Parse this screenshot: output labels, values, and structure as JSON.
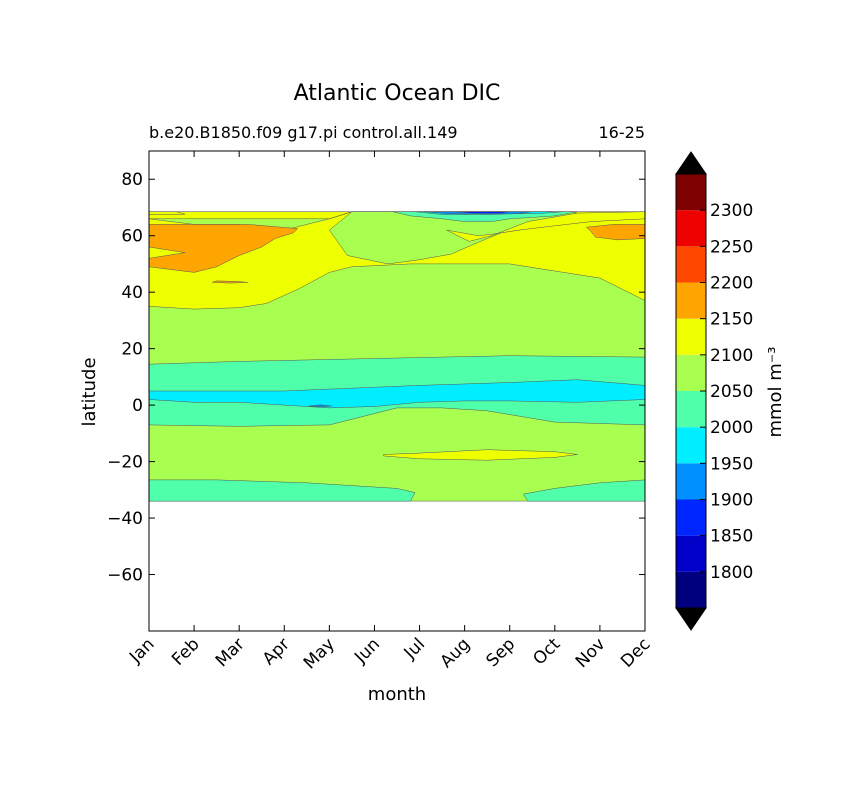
{
  "chart_data": {
    "type": "contourf",
    "title": "Atlantic Ocean DIC",
    "subtitle_left": "b.e20.B1850.f09 g17.pi control.all.149",
    "subtitle_right": "16-25",
    "xlabel": "month",
    "ylabel": "latitude",
    "x_ticks": [
      "Jan",
      "Feb",
      "Mar",
      "Apr",
      "May",
      "Jun",
      "Jul",
      "Aug",
      "Sep",
      "Oct",
      "Nov",
      "Dec"
    ],
    "xlim": [
      1,
      12
    ],
    "ylim": [
      -80,
      90
    ],
    "y_ticks": [
      80,
      60,
      40,
      20,
      0,
      -20,
      -40,
      -60
    ],
    "y_tick_labels": [
      "80",
      "60",
      "40",
      "20",
      "0",
      "−20",
      "−40",
      "−60"
    ],
    "colorbar": {
      "label": "mmol m⁻³",
      "levels": [
        1750,
        1800,
        1850,
        1900,
        1950,
        2000,
        2050,
        2100,
        2150,
        2200,
        2250,
        2300,
        2350
      ],
      "tick_values": [
        1800,
        1850,
        1900,
        1950,
        2000,
        2050,
        2100,
        2150,
        2200,
        2250,
        2300
      ],
      "extend": "both",
      "colors": [
        "#00007f",
        "#0000c8",
        "#0026ff",
        "#0090ff",
        "#00eeff",
        "#4fffa9",
        "#a9ff4f",
        "#eeff00",
        "#ffa500",
        "#ff4800",
        "#ee0000",
        "#7f0000"
      ],
      "extend_color": "#000000"
    },
    "data_extent": {
      "lat_min": -34,
      "lat_max": 68.5
    },
    "regions": [
      {
        "level": 2050,
        "color": "#a9ff4f",
        "pts": [
          [
            1,
            -34
          ],
          [
            12,
            -34
          ],
          [
            12,
            68.5
          ],
          [
            1,
            68.5
          ]
        ]
      },
      {
        "level": 2000,
        "color": "#4fffa9",
        "pts": [
          [
            1,
            -26.5
          ],
          [
            2.5,
            -26.5
          ],
          [
            4.5,
            -27.5
          ],
          [
            6.5,
            -29.5
          ],
          [
            6.9,
            -31
          ],
          [
            6.8,
            -34
          ],
          [
            1,
            -34
          ]
        ]
      },
      {
        "level": 2000,
        "color": "#4fffa9",
        "pts": [
          [
            9.4,
            -34
          ],
          [
            9.3,
            -31.5
          ],
          [
            10,
            -29.5
          ],
          [
            11,
            -27.5
          ],
          [
            12,
            -26.5
          ],
          [
            12,
            -34
          ]
        ]
      },
      {
        "level": 2000,
        "color": "#4fffa9",
        "pts": [
          [
            1,
            14.5
          ],
          [
            3,
            15.5
          ],
          [
            6,
            16.5
          ],
          [
            9,
            17.5
          ],
          [
            12,
            17
          ],
          [
            12,
            -7
          ],
          [
            10,
            -6
          ],
          [
            8.5,
            -2
          ],
          [
            7.5,
            -1
          ],
          [
            6.5,
            -1
          ],
          [
            5,
            -7
          ],
          [
            3,
            -7.5
          ],
          [
            1,
            -7
          ]
        ]
      },
      {
        "level": 1950,
        "color": "#00eeff",
        "pts": [
          [
            1,
            5
          ],
          [
            2,
            5
          ],
          [
            4,
            5
          ],
          [
            5.5,
            6
          ],
          [
            7,
            7
          ],
          [
            9,
            8
          ],
          [
            10.5,
            9
          ],
          [
            12,
            7
          ],
          [
            12,
            2
          ],
          [
            10.5,
            1
          ],
          [
            9,
            1.5
          ],
          [
            8,
            1.5
          ],
          [
            7,
            1
          ],
          [
            6,
            -0.5
          ],
          [
            5,
            -1
          ],
          [
            4,
            0
          ],
          [
            3,
            1
          ],
          [
            2,
            1
          ],
          [
            1,
            2
          ]
        ]
      },
      {
        "level": 1900,
        "color": "#0090ff",
        "pts": [
          [
            4.55,
            -0.3
          ],
          [
            4.8,
            0.1
          ],
          [
            5.05,
            -0.3
          ],
          [
            4.8,
            -0.6
          ]
        ]
      },
      {
        "level": 2100,
        "color": "#eeff00",
        "pts": [
          [
            1,
            35
          ],
          [
            2,
            34
          ],
          [
            3,
            34.5
          ],
          [
            3.6,
            36
          ],
          [
            4.3,
            41
          ],
          [
            5,
            47
          ],
          [
            5.5,
            49
          ],
          [
            6.8,
            50
          ],
          [
            8,
            50
          ],
          [
            9,
            50
          ],
          [
            11,
            45
          ],
          [
            12,
            37
          ],
          [
            12,
            68.5
          ],
          [
            1,
            68.5
          ]
        ]
      },
      {
        "level": 2050,
        "color": "#a9ff4f",
        "pts": [
          [
            1,
            66
          ],
          [
            2,
            64
          ],
          [
            3,
            64
          ],
          [
            4,
            62
          ],
          [
            4.5,
            64
          ],
          [
            5,
            66
          ],
          [
            5.5,
            68.5
          ],
          [
            10,
            68.5
          ],
          [
            9,
            62
          ],
          [
            8,
            60
          ],
          [
            7,
            58
          ],
          [
            6.3,
            55
          ],
          [
            6.4,
            62
          ],
          [
            6,
            66
          ],
          [
            6.5,
            68.5
          ],
          [
            5.5,
            68.5
          ],
          [
            5,
            66
          ]
        ]
      },
      {
        "level": 2050,
        "color": "#a9ff4f",
        "pts": [
          [
            5.5,
            68.5
          ],
          [
            5,
            62
          ],
          [
            5.4,
            53
          ],
          [
            6.3,
            50
          ],
          [
            7,
            51.5
          ],
          [
            7.7,
            53.5
          ],
          [
            8.2,
            57
          ],
          [
            8.8,
            61
          ],
          [
            10,
            64
          ],
          [
            10.5,
            68.5
          ]
        ]
      },
      {
        "level": 2100,
        "color": "#eeff00",
        "pts": [
          [
            7.6,
            62
          ],
          [
            8.1,
            58
          ],
          [
            8.6,
            60
          ],
          [
            9.4,
            65
          ],
          [
            10.5,
            68
          ],
          [
            12,
            68.5
          ],
          [
            12,
            66
          ],
          [
            10.8,
            65
          ],
          [
            10,
            63.5
          ],
          [
            9.2,
            62
          ],
          [
            8.6,
            60.5
          ],
          [
            8.3,
            60
          ]
        ]
      },
      {
        "level": 2150,
        "color": "#ffa500",
        "pts": [
          [
            1,
            64
          ],
          [
            3.2,
            64
          ],
          [
            4.3,
            62.5
          ],
          [
            4.2,
            61
          ],
          [
            3.8,
            59
          ],
          [
            3.5,
            56
          ],
          [
            3,
            53
          ],
          [
            2.5,
            49
          ],
          [
            2,
            47
          ],
          [
            1,
            49
          ],
          [
            1,
            52
          ],
          [
            1.8,
            54
          ],
          [
            1,
            56
          ]
        ]
      },
      {
        "level": 2150,
        "color": "#ffa500",
        "pts": [
          [
            2.5,
            44
          ],
          [
            2.9,
            43.8
          ],
          [
            3.2,
            43.5
          ],
          [
            2.8,
            43.2
          ],
          [
            2.4,
            43.5
          ]
        ]
      },
      {
        "level": 2150,
        "color": "#ffa500",
        "pts": [
          [
            10.7,
            63
          ],
          [
            11.3,
            64
          ],
          [
            12,
            64
          ],
          [
            12,
            59
          ],
          [
            11.4,
            58.5
          ],
          [
            10.9,
            59.5
          ],
          [
            10.8,
            61.5
          ]
        ]
      },
      {
        "level": 2000,
        "color": "#4fffa9",
        "pts": [
          [
            6.4,
            68.5
          ],
          [
            6.8,
            67
          ],
          [
            7.5,
            66
          ],
          [
            8,
            65
          ],
          [
            8.6,
            65
          ],
          [
            9,
            66
          ],
          [
            9.5,
            66.5
          ],
          [
            10,
            67
          ],
          [
            10.5,
            68.5
          ]
        ]
      },
      {
        "level": 1950,
        "color": "#00eeff",
        "pts": [
          [
            6.9,
            68.5
          ],
          [
            7.5,
            67.5
          ],
          [
            8,
            67.5
          ],
          [
            8.8,
            67.8
          ],
          [
            9.6,
            67.8
          ],
          [
            10.2,
            68.5
          ]
        ]
      },
      {
        "level": 1900,
        "color": "#0090ff",
        "pts": [
          [
            7.1,
            68.5
          ],
          [
            7.6,
            67.8
          ],
          [
            8.5,
            67.5
          ],
          [
            9.2,
            67.8
          ],
          [
            9.5,
            68.5
          ]
        ]
      },
      {
        "level": 1850,
        "color": "#0026ff",
        "pts": [
          [
            7.8,
            68.5
          ],
          [
            8.2,
            67.9
          ],
          [
            8.8,
            67.9
          ],
          [
            9.0,
            68.5
          ]
        ]
      },
      {
        "level": 2100,
        "color": "#eeff00",
        "pts": [
          [
            6.2,
            -17.5
          ],
          [
            7,
            -17
          ],
          [
            8.5,
            -15.8
          ],
          [
            10,
            -16.5
          ],
          [
            10.5,
            -17.5
          ],
          [
            10,
            -18.5
          ],
          [
            8.5,
            -19.5
          ],
          [
            7,
            -19
          ],
          [
            6.2,
            -18
          ]
        ]
      },
      {
        "level": 2100,
        "color": "#eeff00",
        "pts": [
          [
            1,
            68.5
          ],
          [
            1,
            67.5
          ],
          [
            1.8,
            67.6
          ],
          [
            1.6,
            68.5
          ]
        ]
      }
    ]
  }
}
